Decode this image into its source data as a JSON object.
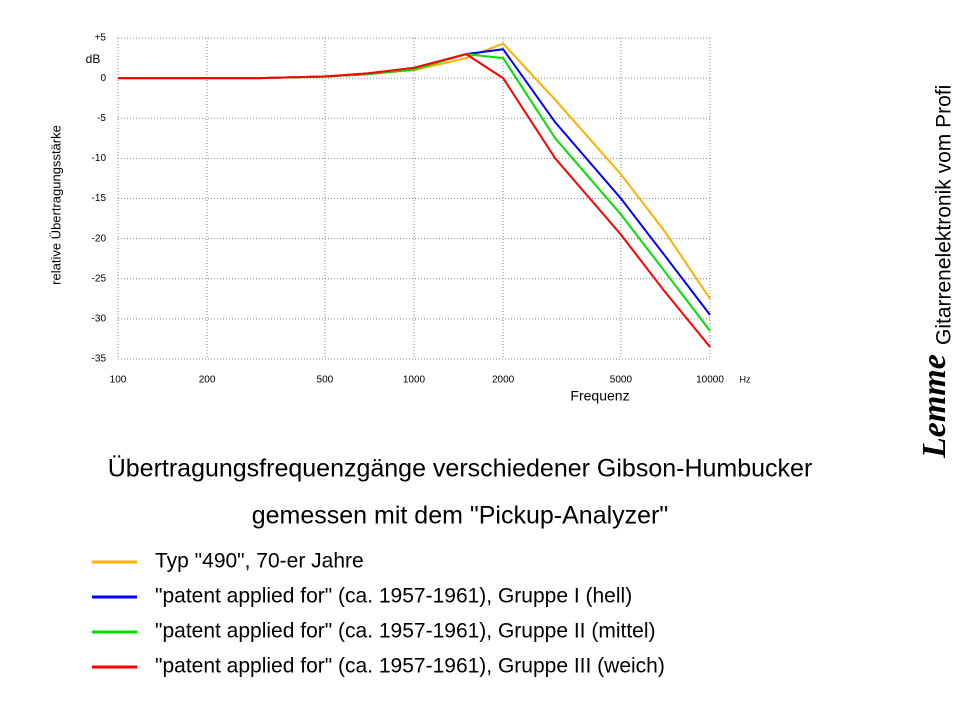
{
  "chart_data": {
    "type": "line",
    "title": "Übertragungsfrequenzgänge verschiedener Gibson-Humbucker",
    "subtitle": "gemessen mit dem \"Pickup-Analyzer\"",
    "x_label": "Frequenz",
    "x_unit": "Hz",
    "y_label": "relative Übertragungsstärke",
    "y_unit": "dB",
    "brand": "Lemme",
    "brand_tagline": "Gitarrenelektronik vom Profi",
    "x": [
      100,
      200,
      300,
      500,
      700,
      1000,
      1500,
      2000,
      3000,
      5000,
      7000,
      10000
    ],
    "log_x": true,
    "grid": true,
    "xlim": [
      100,
      10000
    ],
    "xticks": [
      100,
      200,
      500,
      1000,
      2000,
      5000,
      10000
    ],
    "ylim": [
      -35,
      5
    ],
    "yticks": [
      {
        "value": 5,
        "label": "+5"
      },
      0,
      -5,
      -10,
      -15,
      -20,
      -25,
      -30,
      -35
    ],
    "series": [
      {
        "name": "Typ \"490\", 70-er Jahre",
        "color": "#ffb000",
        "values": [
          0,
          0,
          0,
          0.2,
          0.5,
          1.0,
          2.5,
          4.3,
          -2.7,
          -12,
          -19,
          -27.5
        ]
      },
      {
        "name": "\"patent applied for\" (ca. 1957-1961), Gruppe I (hell)",
        "color": "#0000ff",
        "values": [
          0,
          0,
          0,
          0.2,
          0.5,
          1.1,
          3.0,
          3.6,
          -5.5,
          -15,
          -22,
          -29.5
        ]
      },
      {
        "name": "\"patent applied for\" (ca. 1957-1961), Gruppe II (mittel)",
        "color": "#00e000",
        "values": [
          0,
          0,
          0,
          0.2,
          0.5,
          1.1,
          3.0,
          2.5,
          -7.5,
          -17,
          -24,
          -31.5
        ]
      },
      {
        "name": "\"patent applied for\" (ca. 1957-1961), Gruppe III (weich)",
        "color": "#ff0000",
        "values": [
          0,
          0,
          0,
          0.2,
          0.6,
          1.3,
          3.0,
          0,
          -10,
          -19.5,
          -26.5,
          -33.5
        ]
      }
    ]
  }
}
